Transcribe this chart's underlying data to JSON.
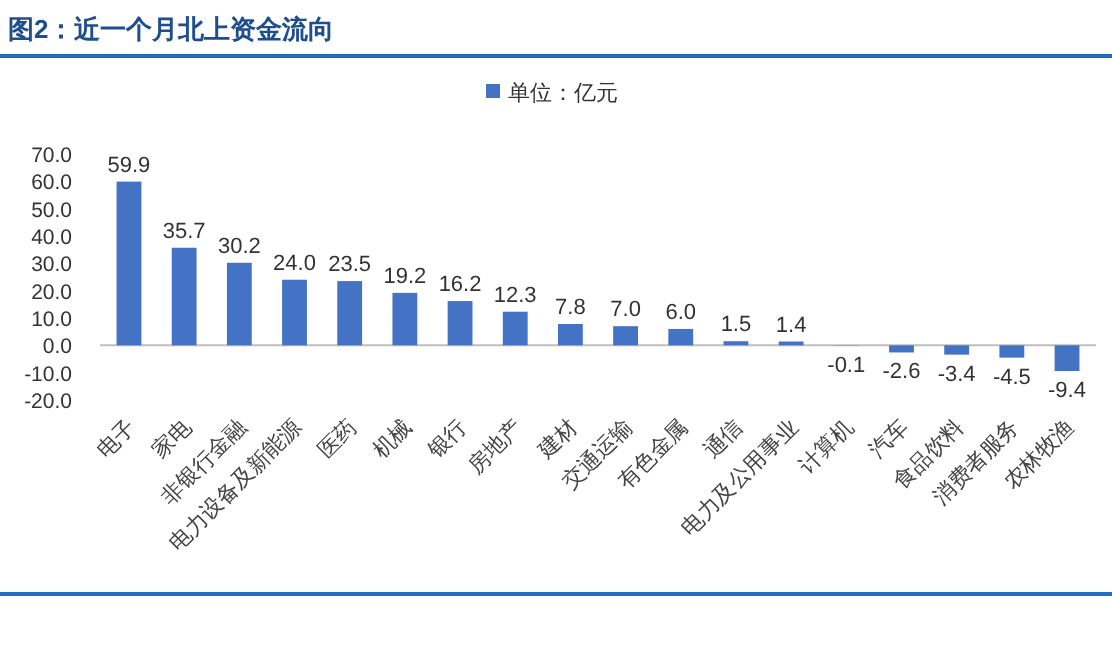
{
  "chart_data": {
    "type": "bar",
    "title": "图2：近一个月北上资金流向",
    "categories": [
      "电子",
      "家电",
      "非银行金融",
      "电力设备及新能源",
      "医药",
      "机械",
      "银行",
      "房地产",
      "建材",
      "交通运输",
      "有色金属",
      "通信",
      "电力及公用事业",
      "计算机",
      "汽车",
      "食品饮料",
      "消费者服务",
      "农林牧渔"
    ],
    "series": [
      {
        "name": "单位：亿元",
        "color": "#4472c4",
        "values": [
          59.9,
          35.7,
          30.2,
          24.0,
          23.5,
          19.2,
          16.2,
          12.3,
          7.8,
          7.0,
          6.0,
          1.5,
          1.4,
          -0.1,
          -2.6,
          -3.4,
          -4.5,
          -9.4
        ],
        "value_labels": [
          "59.9",
          "35.7",
          "30.2",
          "24.0",
          "23.5",
          "19.2",
          "16.2",
          "12.3",
          "7.8",
          "7.0",
          "6.0",
          "1.5",
          "1.4",
          "-0.1",
          "-2.6",
          "-3.4",
          "-4.5",
          "-9.4"
        ]
      }
    ],
    "ylim": [
      -20,
      70
    ],
    "yticks": [
      {
        "value": -20,
        "label": "-20.0"
      },
      {
        "value": -10,
        "label": "-10.0"
      },
      {
        "value": 0,
        "label": "0.0"
      },
      {
        "value": 10,
        "label": "10.0"
      },
      {
        "value": 20,
        "label": "20.0"
      },
      {
        "value": 30,
        "label": "30.0"
      },
      {
        "value": 40,
        "label": "40.0"
      },
      {
        "value": 50,
        "label": "50.0"
      },
      {
        "value": 60,
        "label": "60.0"
      },
      {
        "value": 70,
        "label": "70.0"
      }
    ],
    "legend": "top"
  }
}
